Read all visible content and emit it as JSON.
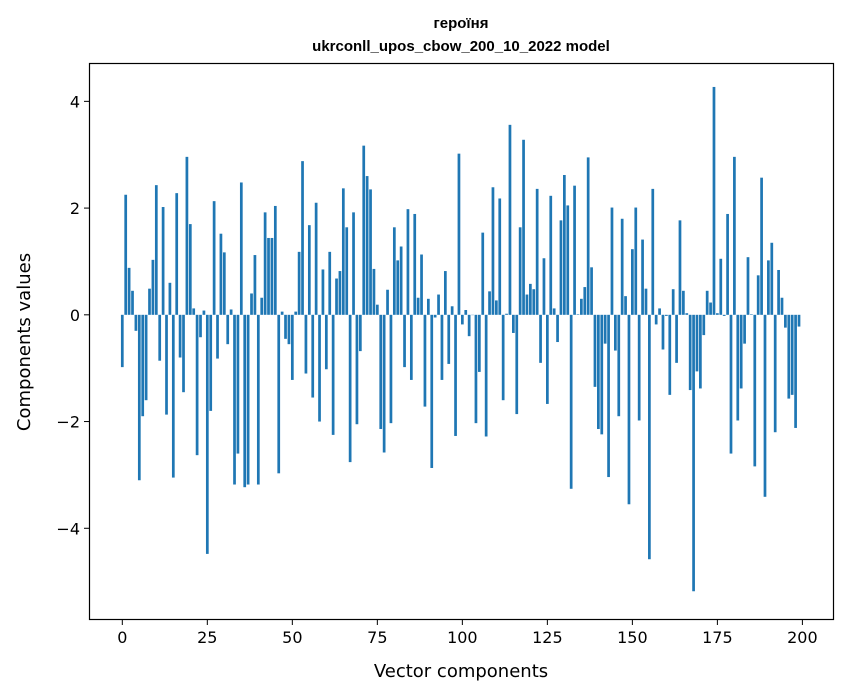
{
  "chart_data": {
    "type": "bar",
    "title": "героїня",
    "subtitle": "ukrconll_upos_cbow_200_10_2022 model",
    "xlabel": "Vector components",
    "ylabel": "Components values",
    "xlim": [
      -9.5,
      209
    ],
    "ylim": [
      -5.7,
      4.7
    ],
    "xticks": [
      0,
      25,
      50,
      75,
      100,
      125,
      150,
      175,
      200
    ],
    "yticks": [
      -4,
      -2,
      0,
      2,
      4
    ],
    "bar_color": "#1f77b4",
    "grid": false,
    "legend": "none",
    "values": [
      -0.98,
      2.25,
      0.88,
      0.45,
      -0.3,
      -3.1,
      -1.9,
      -1.6,
      0.49,
      1.03,
      2.43,
      -0.86,
      2.02,
      -1.87,
      0.6,
      -3.05,
      2.28,
      -0.8,
      -1.45,
      2.96,
      1.7,
      0.12,
      -2.63,
      -0.42,
      0.08,
      -4.48,
      -1.8,
      2.13,
      -0.82,
      1.52,
      1.17,
      -0.55,
      0.1,
      -3.18,
      -2.6,
      2.48,
      -3.23,
      -3.18,
      0.4,
      1.12,
      -3.18,
      0.32,
      1.92,
      1.44,
      1.44,
      2.04,
      -2.97,
      0.06,
      -0.45,
      -0.55,
      -1.22,
      0.06,
      1.18,
      2.88,
      -1.1,
      1.68,
      -1.55,
      2.1,
      -2.0,
      0.85,
      -1.02,
      1.18,
      -2.25,
      0.68,
      0.82,
      2.37,
      1.64,
      -2.76,
      1.92,
      -2.05,
      -0.68,
      3.17,
      2.6,
      2.35,
      0.86,
      0.19,
      -2.14,
      -2.58,
      0.47,
      -2.03,
      1.64,
      1.02,
      1.28,
      -0.98,
      1.98,
      -1.22,
      1.89,
      0.32,
      1.13,
      -1.72,
      0.3,
      -2.87,
      -0.05,
      0.38,
      -1.22,
      0.82,
      -0.92,
      0.16,
      -2.27,
      3.02,
      -0.18,
      0.09,
      -0.4,
      0.0,
      -2.03,
      -1.07,
      1.54,
      -2.28,
      0.44,
      2.39,
      0.27,
      2.18,
      -1.6,
      0.02,
      3.56,
      -0.34,
      -1.86,
      1.64,
      3.28,
      0.38,
      0.58,
      0.48,
      2.36,
      -0.9,
      1.06,
      -1.67,
      2.23,
      0.12,
      -0.51,
      1.77,
      2.62,
      2.05,
      -3.26,
      2.42,
      0.01,
      0.3,
      0.52,
      2.95,
      0.89,
      -1.35,
      -2.14,
      -2.24,
      -0.54,
      -3.04,
      2.01,
      -0.67,
      -1.9,
      1.8,
      0.35,
      -3.55,
      1.23,
      2.01,
      -1.98,
      1.41,
      0.49,
      -4.58,
      2.36,
      -0.18,
      0.12,
      -0.65,
      -0.02,
      -1.5,
      0.48,
      -0.9,
      1.77,
      0.45,
      0.03,
      -1.41,
      -5.18,
      -1.06,
      -1.38,
      -0.38,
      0.45,
      0.23,
      4.27,
      0.03,
      1.05,
      -0.02,
      1.89,
      -2.6,
      2.96,
      -1.98,
      -1.38,
      -0.54,
      1.08,
      0.01,
      -2.84,
      0.74,
      2.57,
      -3.41,
      1.02,
      1.35,
      -2.2,
      0.84,
      0.32,
      -0.24,
      -1.57,
      -1.5,
      -2.12,
      -0.22
    ]
  }
}
